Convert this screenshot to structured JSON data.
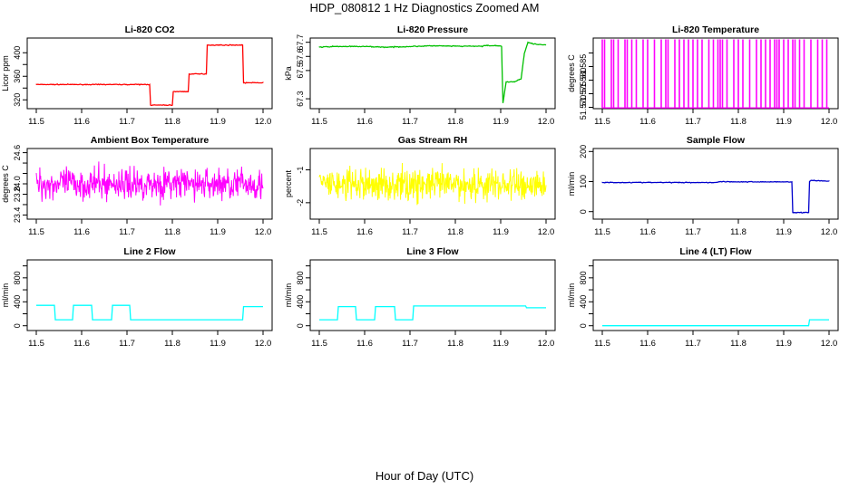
{
  "title": "HDP_080812  1 Hz Diagnostics Zoomed AM",
  "xlabel": "Hour of Day (UTC)",
  "chart_data": [
    {
      "type": "line",
      "title": "Li-820 CO2",
      "ylabel": "Licor ppm",
      "color": "#ff0000",
      "xlim": [
        11.5,
        12.0
      ],
      "ylim": [
        305,
        425
      ],
      "xticks": [
        "11.5",
        "11.6",
        "11.7",
        "11.8",
        "11.9",
        "12.0"
      ],
      "yticks": [
        320,
        340,
        360,
        380,
        400
      ],
      "ytick_labels": [
        "320",
        "",
        "360",
        "",
        "400"
      ],
      "noise": 0.6,
      "x": [
        11.5,
        11.75,
        11.752,
        11.8,
        11.802,
        11.835,
        11.837,
        11.875,
        11.877,
        11.955,
        11.957,
        12.0
      ],
      "y": [
        346,
        346,
        311,
        311,
        334,
        334,
        364,
        364,
        413,
        413,
        349,
        349
      ]
    },
    {
      "type": "line",
      "title": "Li-820 Pressure",
      "ylabel": "kPa",
      "color": "#00c000",
      "xlim": [
        11.5,
        12.0
      ],
      "ylim": [
        67.23,
        67.73
      ],
      "xticks": [
        "11.5",
        "11.6",
        "11.7",
        "11.8",
        "11.9",
        "12.0"
      ],
      "yticks": [
        67.3,
        67.5,
        67.6,
        67.7
      ],
      "ytick_labels": [
        "67.3",
        "67.5",
        "67.6",
        "67.7"
      ],
      "noise": 0.003,
      "x": [
        11.5,
        11.53,
        11.6,
        11.65,
        11.7,
        11.75,
        11.8,
        11.86,
        11.872,
        11.875,
        11.895,
        11.902,
        11.905,
        11.912,
        11.93,
        11.945,
        11.952,
        11.96,
        11.97,
        12.0
      ],
      "y": [
        67.665,
        67.67,
        67.67,
        67.665,
        67.67,
        67.675,
        67.672,
        67.672,
        67.68,
        67.675,
        67.675,
        67.67,
        67.27,
        67.42,
        67.42,
        67.44,
        67.62,
        67.7,
        67.69,
        67.68
      ]
    },
    {
      "type": "spikes",
      "title": "Li-820 Temperature",
      "ylabel": "degrees C",
      "color": "#ff00ff",
      "xlim": [
        11.5,
        12.0
      ],
      "ylim": [
        51.5695,
        51.5955
      ],
      "xticks": [
        "11.5",
        "11.6",
        "11.7",
        "11.8",
        "11.9",
        "12.0"
      ],
      "yticks": [
        51.57,
        51.575,
        51.58,
        51.585,
        51.59
      ],
      "ytick_labels": [
        "51.570",
        "51.575",
        "51.580",
        "51.585",
        ""
      ],
      "base": 51.5698,
      "peak": 51.595,
      "x": [
        11.5,
        11.505,
        11.52,
        11.525,
        11.535,
        11.55,
        11.555,
        11.565,
        11.575,
        11.59,
        11.6,
        11.615,
        11.63,
        11.64,
        11.645,
        11.66,
        11.67,
        11.68,
        11.69,
        11.7,
        11.71,
        11.72,
        11.735,
        11.745,
        11.755,
        11.76,
        11.765,
        11.775,
        11.79,
        11.8,
        11.81,
        11.825,
        11.84,
        11.85,
        11.86,
        11.87,
        11.88,
        11.885,
        11.89,
        11.9,
        11.91,
        11.92,
        11.925,
        11.935,
        11.945,
        11.96,
        11.975,
        11.985,
        11.995
      ]
    },
    {
      "type": "noise",
      "title": "Ambient Box Temperature",
      "ylabel": "degrees C",
      "color": "#ff00ff",
      "xlim": [
        11.5,
        12.0
      ],
      "ylim": [
        23.32,
        24.68
      ],
      "xticks": [
        "11.5",
        "11.6",
        "11.7",
        "11.8",
        "11.9",
        "12.0"
      ],
      "yticks": [
        23.4,
        23.6,
        23.8,
        24.0,
        24.2,
        24.4,
        24.6
      ],
      "ytick_labels": [
        "23.4",
        "",
        "23.8",
        "24.0",
        "",
        "",
        "24.6"
      ],
      "center": 24.0,
      "spread": 0.3,
      "max": 24.6,
      "min": 23.4
    },
    {
      "type": "noise",
      "title": "Gas Stream RH",
      "ylabel": "percent",
      "color": "#ffff00",
      "xlim": [
        11.5,
        12.0
      ],
      "ylim": [
        -2.5,
        -0.35
      ],
      "xticks": [
        "11.5",
        "11.6",
        "11.7",
        "11.8",
        "11.9",
        "12.0"
      ],
      "yticks": [
        -2,
        -1
      ],
      "ytick_labels": [
        "-2",
        "-1"
      ],
      "center": -1.45,
      "spread": 0.5,
      "max": -0.6,
      "min": -2.4
    },
    {
      "type": "line",
      "title": "Sample Flow",
      "ylabel": "ml/min",
      "color": "#0000cc",
      "xlim": [
        11.5,
        12.0
      ],
      "ylim": [
        -25,
        210
      ],
      "xticks": [
        "11.5",
        "11.6",
        "11.7",
        "11.8",
        "11.9",
        "12.0"
      ],
      "yticks": [
        0,
        100,
        200
      ],
      "ytick_labels": [
        "0",
        "100",
        "200"
      ],
      "noise": 1.2,
      "x": [
        11.5,
        11.75,
        11.76,
        11.8,
        11.9,
        11.918,
        11.92,
        11.955,
        11.957,
        11.96,
        12.0
      ],
      "y": [
        97,
        97,
        100,
        99,
        99,
        99,
        -3,
        -3,
        100,
        104,
        101
      ]
    },
    {
      "type": "line",
      "title": "Line 2 Flow",
      "ylabel": "ml/min",
      "color": "#00ffff",
      "xlim": [
        11.5,
        12.0
      ],
      "ylim": [
        -80,
        1100
      ],
      "xticks": [
        "11.5",
        "11.6",
        "11.7",
        "11.8",
        "11.9",
        "12.0"
      ],
      "yticks": [
        0,
        200,
        400,
        600,
        800,
        1000
      ],
      "ytick_labels": [
        "0",
        "",
        "400",
        "",
        "800",
        ""
      ],
      "noise": 0,
      "x": [
        11.5,
        11.54,
        11.542,
        11.58,
        11.582,
        11.622,
        11.624,
        11.666,
        11.668,
        11.706,
        11.708,
        11.955,
        11.957,
        12.0
      ],
      "y": [
        340,
        340,
        100,
        100,
        340,
        340,
        100,
        100,
        340,
        340,
        100,
        100,
        320,
        320
      ]
    },
    {
      "type": "line",
      "title": "Line 3 Flow",
      "ylabel": "ml/min",
      "color": "#00ffff",
      "xlim": [
        11.5,
        12.0
      ],
      "ylim": [
        -80,
        1100
      ],
      "xticks": [
        "11.5",
        "11.6",
        "11.7",
        "11.8",
        "11.9",
        "12.0"
      ],
      "yticks": [
        0,
        200,
        400,
        600,
        800,
        1000
      ],
      "ytick_labels": [
        "0",
        "",
        "400",
        "",
        "800",
        ""
      ],
      "noise": 0,
      "x": [
        11.5,
        11.54,
        11.542,
        11.58,
        11.582,
        11.622,
        11.624,
        11.666,
        11.668,
        11.706,
        11.708,
        11.955,
        11.957,
        12.0
      ],
      "y": [
        100,
        100,
        320,
        320,
        100,
        100,
        320,
        320,
        100,
        100,
        330,
        330,
        300,
        300
      ]
    },
    {
      "type": "line",
      "title": "Line 4 (LT) Flow",
      "ylabel": "ml/min",
      "color": "#00ffff",
      "xlim": [
        11.5,
        12.0
      ],
      "ylim": [
        -80,
        1100
      ],
      "xticks": [
        "11.5",
        "11.6",
        "11.7",
        "11.8",
        "11.9",
        "12.0"
      ],
      "yticks": [
        0,
        200,
        400,
        600,
        800,
        1000
      ],
      "ytick_labels": [
        "0",
        "",
        "400",
        "",
        "800",
        ""
      ],
      "noise": 0,
      "x": [
        11.5,
        11.955,
        11.957,
        12.0
      ],
      "y": [
        0,
        0,
        100,
        100
      ]
    }
  ]
}
